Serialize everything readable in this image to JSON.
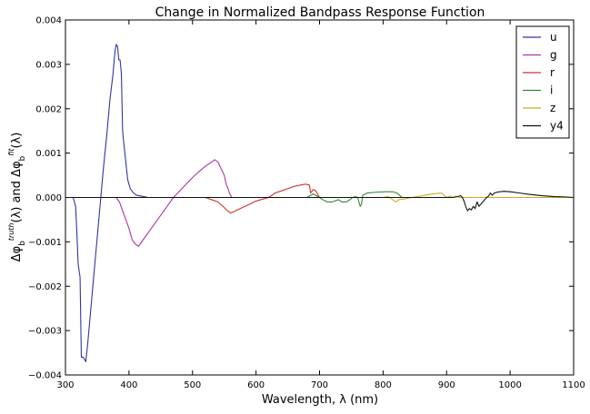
{
  "chart_data": {
    "type": "line",
    "title": "Change in Normalized Bandpass Response Function",
    "xlabel": "Wavelength, λ (nm)",
    "ylabel": "Δφb^truth(λ) and Δφb^fit(λ)",
    "xlim": [
      300,
      1100
    ],
    "ylim": [
      -0.004,
      0.004
    ],
    "x_ticks": [
      300,
      400,
      500,
      600,
      700,
      800,
      900,
      1000,
      1100
    ],
    "x_tick_labels": [
      "300",
      "400",
      "500",
      "600",
      "700",
      "800",
      "900",
      "1000",
      "1100"
    ],
    "y_ticks": [
      -0.004,
      -0.003,
      -0.002,
      -0.001,
      0.0,
      0.001,
      0.002,
      0.003,
      0.004
    ],
    "y_tick_labels": [
      "−0.004",
      "−0.003",
      "−0.002",
      "−0.001",
      "0.000",
      "0.001",
      "0.002",
      "0.003",
      "0.004"
    ],
    "grid": false,
    "legend": "top-right",
    "series": [
      {
        "name": "u",
        "color": "#3333aa",
        "points": [
          [
            300,
            0
          ],
          [
            312,
            0
          ],
          [
            316,
            -0.0002
          ],
          [
            318,
            -0.0008
          ],
          [
            320,
            -0.0015
          ],
          [
            323,
            -0.0018
          ],
          [
            325,
            -0.0036
          ],
          [
            328,
            -0.0036
          ],
          [
            330,
            -0.00365
          ],
          [
            332,
            -0.0037
          ],
          [
            335,
            -0.0033
          ],
          [
            340,
            -0.0025
          ],
          [
            345,
            -0.0017
          ],
          [
            350,
            -0.0009
          ],
          [
            355,
            -0.0001
          ],
          [
            360,
            0.0007
          ],
          [
            365,
            0.0014
          ],
          [
            370,
            0.0022
          ],
          [
            375,
            0.0028
          ],
          [
            378,
            0.0033
          ],
          [
            380,
            0.00345
          ],
          [
            382,
            0.0034
          ],
          [
            384,
            0.0031
          ],
          [
            386,
            0.0031
          ],
          [
            388,
            0.0028
          ],
          [
            390,
            0.0015
          ],
          [
            392,
            0.0012
          ],
          [
            395,
            0.0008
          ],
          [
            398,
            0.0004
          ],
          [
            402,
            0.0002
          ],
          [
            407,
            0.0001
          ],
          [
            412,
            5e-05
          ],
          [
            420,
            3e-05
          ],
          [
            430,
            0
          ],
          [
            460,
            0
          ]
        ]
      },
      {
        "name": "g",
        "color": "#aa33aa",
        "points": [
          [
            300,
            0
          ],
          [
            380,
            0
          ],
          [
            385,
            -0.0001
          ],
          [
            390,
            -0.0003
          ],
          [
            395,
            -0.0005
          ],
          [
            400,
            -0.0007
          ],
          [
            405,
            -0.00095
          ],
          [
            410,
            -0.00105
          ],
          [
            415,
            -0.0011
          ],
          [
            420,
            -0.001
          ],
          [
            430,
            -0.0008
          ],
          [
            440,
            -0.0006
          ],
          [
            450,
            -0.0004
          ],
          [
            460,
            -0.0002
          ],
          [
            470,
            0
          ],
          [
            480,
            0.00015
          ],
          [
            490,
            0.0003
          ],
          [
            500,
            0.00045
          ],
          [
            510,
            0.00058
          ],
          [
            520,
            0.0007
          ],
          [
            530,
            0.0008
          ],
          [
            535,
            0.00085
          ],
          [
            540,
            0.0008
          ],
          [
            545,
            0.00065
          ],
          [
            550,
            0.0005
          ],
          [
            553,
            0.0003
          ],
          [
            556,
            0.0002
          ],
          [
            558,
            0.0001
          ],
          [
            562,
            0
          ],
          [
            570,
            0
          ],
          [
            600,
            0
          ]
        ]
      },
      {
        "name": "r",
        "color": "#cc3333",
        "points": [
          [
            300,
            0
          ],
          [
            520,
            0
          ],
          [
            530,
            -5e-05
          ],
          [
            540,
            -0.0001
          ],
          [
            548,
            -0.0002
          ],
          [
            555,
            -0.0003
          ],
          [
            560,
            -0.00035
          ],
          [
            565,
            -0.00032
          ],
          [
            575,
            -0.00025
          ],
          [
            590,
            -0.00015
          ],
          [
            600,
            -8e-05
          ],
          [
            610,
            -4e-05
          ],
          [
            620,
            0
          ],
          [
            630,
            0.0001
          ],
          [
            640,
            0.00015
          ],
          [
            650,
            0.0002
          ],
          [
            660,
            0.00025
          ],
          [
            670,
            0.00028
          ],
          [
            678,
            0.0003
          ],
          [
            684,
            0.00028
          ],
          [
            686,
            0.0001
          ],
          [
            690,
            0.00018
          ],
          [
            694,
            0.00015
          ],
          [
            700,
            0
          ],
          [
            720,
            0
          ],
          [
            740,
            0
          ]
        ]
      },
      {
        "name": "i",
        "color": "#338833",
        "points": [
          [
            300,
            0
          ],
          [
            660,
            0
          ],
          [
            680,
            0
          ],
          [
            690,
            8e-05
          ],
          [
            700,
            0
          ],
          [
            705,
            -5e-05
          ],
          [
            712,
            -0.0001
          ],
          [
            720,
            -0.0001
          ],
          [
            730,
            -5e-05
          ],
          [
            735,
            -0.0001
          ],
          [
            742,
            -0.0001
          ],
          [
            748,
            -5e-05
          ],
          [
            752,
            0
          ],
          [
            756,
            2e-05
          ],
          [
            760,
            0
          ],
          [
            762,
            -0.0001
          ],
          [
            764,
            -0.0002
          ],
          [
            766,
            -0.00015
          ],
          [
            768,
            5e-05
          ],
          [
            775,
            0.0001
          ],
          [
            790,
            0.00012
          ],
          [
            805,
            0.00013
          ],
          [
            815,
            0.00013
          ],
          [
            822,
            0.0001
          ],
          [
            826,
            5e-05
          ],
          [
            830,
            0
          ],
          [
            840,
            0
          ],
          [
            870,
            0
          ]
        ]
      },
      {
        "name": "z",
        "color": "#ccaa22",
        "points": [
          [
            300,
            0
          ],
          [
            800,
            0
          ],
          [
            808,
            2e-05
          ],
          [
            815,
            -5e-05
          ],
          [
            820,
            -0.0001
          ],
          [
            825,
            -5e-05
          ],
          [
            835,
            -3e-05
          ],
          [
            845,
            0
          ],
          [
            855,
            2e-05
          ],
          [
            865,
            5e-05
          ],
          [
            875,
            7e-05
          ],
          [
            885,
            9e-05
          ],
          [
            892,
            0.0001
          ],
          [
            896,
            5e-05
          ],
          [
            900,
            0
          ],
          [
            905,
            3e-05
          ],
          [
            910,
            0
          ],
          [
            915,
            3e-05
          ],
          [
            920,
            0
          ],
          [
            960,
            0
          ],
          [
            1100,
            0
          ]
        ]
      },
      {
        "name": "y4",
        "color": "#111111",
        "points": [
          [
            300,
            0
          ],
          [
            900,
            0
          ],
          [
            910,
            0
          ],
          [
            918,
            2e-05
          ],
          [
            922,
            4e-05
          ],
          [
            925,
            0
          ],
          [
            928,
            -0.0001
          ],
          [
            930,
            -0.0002
          ],
          [
            933,
            -0.0003
          ],
          [
            936,
            -0.00025
          ],
          [
            939,
            -0.00028
          ],
          [
            942,
            -0.0002
          ],
          [
            945,
            -0.00025
          ],
          [
            948,
            -0.0001
          ],
          [
            951,
            -0.0002
          ],
          [
            954,
            -0.00015
          ],
          [
            957,
            -0.0001
          ],
          [
            960,
            -5e-05
          ],
          [
            963,
            0
          ],
          [
            966,
            3e-05
          ],
          [
            969,
            0.0001
          ],
          [
            972,
            5e-05
          ],
          [
            975,
            0.0001
          ],
          [
            980,
            0.00012
          ],
          [
            990,
            0.00014
          ],
          [
            1000,
            0.00013
          ],
          [
            1015,
            0.0001
          ],
          [
            1030,
            7e-05
          ],
          [
            1050,
            4e-05
          ],
          [
            1070,
            2e-05
          ],
          [
            1090,
            1e-05
          ],
          [
            1100,
            0
          ]
        ]
      }
    ]
  }
}
